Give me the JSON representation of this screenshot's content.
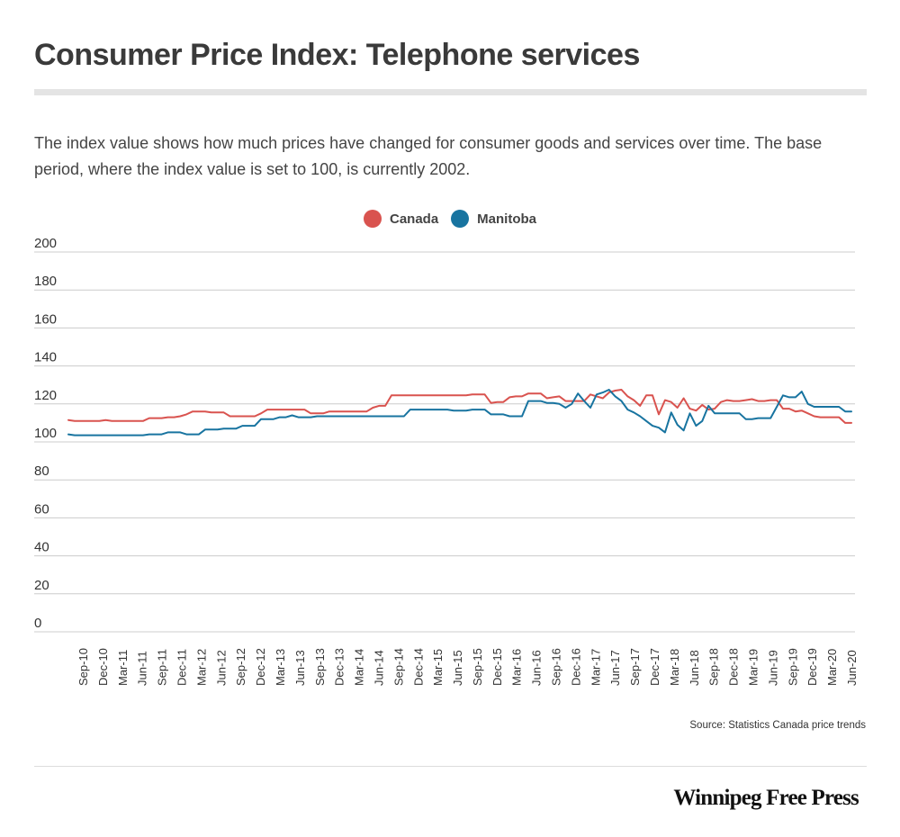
{
  "header": {
    "title": "Consumer Price Index: Telephone services",
    "description": "The index value shows how much prices have changed for consumer goods and services over time. The base period, where the index value is set to 100, is currently 2002."
  },
  "legend": {
    "canada_label": "Canada",
    "manitoba_label": "Manitoba"
  },
  "footer": {
    "source": "Source: Statistics Canada price trends",
    "brand": "Winnipeg Free Press"
  },
  "colors": {
    "canada": "#d9534f",
    "manitoba": "#1874a0",
    "grid": "#cccccc",
    "axis_text": "#333333"
  },
  "chart_data": {
    "type": "line",
    "title": "Consumer Price Index: Telephone services",
    "xlabel": "",
    "ylabel": "",
    "ylim": [
      0,
      200
    ],
    "yticks": [
      0,
      20,
      40,
      60,
      80,
      100,
      120,
      140,
      160,
      180,
      200
    ],
    "grid": true,
    "legend_position": "top-center",
    "x_start": "Aug 2010",
    "x_end": "Jul 2020",
    "x_tick_labels": [
      "Sep-10",
      "Dec-10",
      "Mar-11",
      "Jun-11",
      "Sep-11",
      "Dec-11",
      "Mar-12",
      "Jun-12",
      "Sep-12",
      "Dec-12",
      "Mar-13",
      "Jun-13",
      "Sep-13",
      "Dec-13",
      "Mar-14",
      "Jun-14",
      "Sep-14",
      "Dec-14",
      "Mar-15",
      "Jun-15",
      "Sep-15",
      "Dec-15",
      "Mar-16",
      "Jun-16",
      "Sep-16",
      "Dec-16",
      "Mar-17",
      "Jun-17",
      "Sep-17",
      "Dec-17",
      "Mar-18",
      "Jun-18",
      "Sep-18",
      "Dec-18",
      "Mar-19",
      "Jun-19",
      "Sep-19",
      "Dec-19",
      "Mar-20",
      "Jun-20"
    ],
    "series": [
      {
        "name": "Canada",
        "color": "#d9534f",
        "values": [
          111.5,
          111,
          111,
          111,
          111,
          111,
          111.5,
          111,
          111,
          111,
          111,
          111,
          111,
          112.5,
          112.5,
          112.5,
          113,
          113,
          113.5,
          114.5,
          116,
          116,
          116,
          115.5,
          115.5,
          115.5,
          113.5,
          113.5,
          113.5,
          113.5,
          113.5,
          115,
          117,
          117,
          117,
          117,
          117,
          117,
          117,
          115,
          115,
          115,
          116,
          116,
          116,
          116,
          116,
          116,
          116,
          118,
          119,
          119,
          124.5,
          124.5,
          124.5,
          124.5,
          124.5,
          124.5,
          124.5,
          124.5,
          124.5,
          124.5,
          124.5,
          124.5,
          124.5,
          125,
          125,
          125,
          120.5,
          121,
          121,
          123.5,
          124,
          124,
          125.5,
          125.5,
          125.5,
          123,
          123.5,
          124,
          121.5,
          121.5,
          121.5,
          121.5,
          125,
          124,
          123,
          126,
          127,
          127.5,
          124,
          122,
          119,
          124.5,
          124.5,
          114.5,
          122,
          121,
          118,
          123,
          117.5,
          116.5,
          119.5,
          117,
          117.5,
          121,
          122,
          121.5,
          121.5,
          122,
          122.5,
          121.5,
          121.5,
          122,
          122,
          117.5,
          117.5,
          116,
          116.5,
          115,
          113.5,
          113,
          113,
          113,
          113,
          110,
          110
        ]
      },
      {
        "name": "Manitoba",
        "color": "#1874a0",
        "values": [
          104,
          103.5,
          103.5,
          103.5,
          103.5,
          103.5,
          103.5,
          103.5,
          103.5,
          103.5,
          103.5,
          103.5,
          103.5,
          104,
          104,
          104,
          105,
          105,
          105,
          104,
          104,
          104,
          106.5,
          106.5,
          106.5,
          107,
          107,
          107,
          108.5,
          108.5,
          108.5,
          112,
          112,
          112,
          113,
          113,
          114,
          113,
          113,
          113,
          113.5,
          113.5,
          113.5,
          113.5,
          113.5,
          113.5,
          113.5,
          113.5,
          113.5,
          113.5,
          113.5,
          113.5,
          113.5,
          113.5,
          113.5,
          117,
          117,
          117,
          117,
          117,
          117,
          117,
          116.5,
          116.5,
          116.5,
          117,
          117,
          117,
          114.5,
          114.5,
          114.5,
          113.5,
          113.5,
          113.5,
          121.5,
          121.5,
          121.5,
          120.5,
          120.5,
          120,
          118,
          120,
          125.5,
          121.5,
          118,
          125,
          126,
          127.5,
          124,
          121.5,
          117,
          115.5,
          113.5,
          111,
          108.5,
          107.5,
          105,
          115.5,
          109,
          106,
          115,
          108.5,
          111,
          119,
          115,
          115,
          115,
          115,
          115,
          112,
          112,
          112.5,
          112.5,
          112.5,
          118.5,
          124.5,
          123.5,
          123.5,
          126.5,
          120,
          118.5,
          118.5,
          118.5,
          118.5,
          118.5,
          116,
          116
        ]
      }
    ]
  }
}
